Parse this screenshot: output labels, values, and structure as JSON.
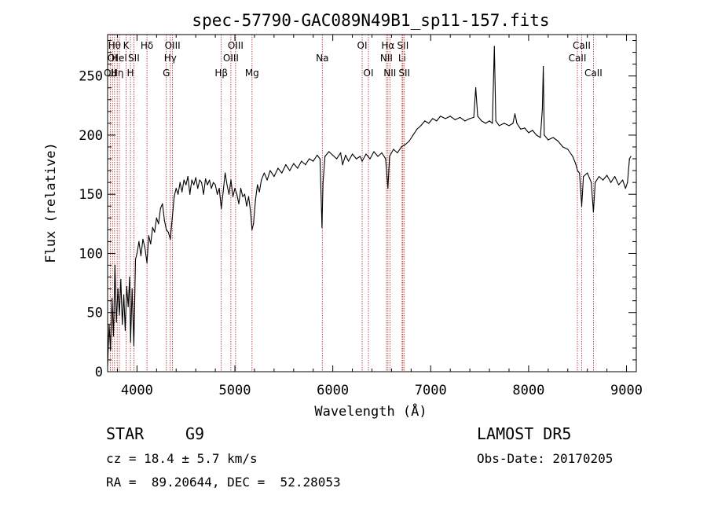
{
  "chart_data": {
    "type": "line",
    "title": "spec-57790-GAC089N49B1_sp11-157.fits",
    "xlabel": "Wavelength (Å)",
    "ylabel": "Flux (relative)",
    "xlim": [
      3700,
      9100
    ],
    "ylim": [
      0,
      285
    ],
    "xticks": [
      4000,
      5000,
      6000,
      7000,
      8000,
      9000
    ],
    "yticks": [
      0,
      50,
      100,
      150,
      200,
      250
    ],
    "grid": false,
    "line_color": "#000000",
    "marker_color": "#b22222",
    "series": [
      {
        "values": [
          {
            "x": 3700,
            "y": 5
          },
          {
            "x": 3715,
            "y": 40
          },
          {
            "x": 3730,
            "y": 18
          },
          {
            "x": 3745,
            "y": 62
          },
          {
            "x": 3760,
            "y": 30
          },
          {
            "x": 3775,
            "y": 90
          },
          {
            "x": 3790,
            "y": 42
          },
          {
            "x": 3805,
            "y": 70
          },
          {
            "x": 3820,
            "y": 48
          },
          {
            "x": 3835,
            "y": 78
          },
          {
            "x": 3850,
            "y": 40
          },
          {
            "x": 3865,
            "y": 65
          },
          {
            "x": 3880,
            "y": 35
          },
          {
            "x": 3895,
            "y": 72
          },
          {
            "x": 3910,
            "y": 55
          },
          {
            "x": 3925,
            "y": 80
          },
          {
            "x": 3934,
            "y": 25
          },
          {
            "x": 3950,
            "y": 70
          },
          {
            "x": 3968,
            "y": 22
          },
          {
            "x": 3985,
            "y": 95
          },
          {
            "x": 4000,
            "y": 100
          },
          {
            "x": 4020,
            "y": 110
          },
          {
            "x": 4040,
            "y": 98
          },
          {
            "x": 4060,
            "y": 112
          },
          {
            "x": 4080,
            "y": 105
          },
          {
            "x": 4102,
            "y": 92
          },
          {
            "x": 4120,
            "y": 115
          },
          {
            "x": 4140,
            "y": 108
          },
          {
            "x": 4160,
            "y": 122
          },
          {
            "x": 4180,
            "y": 118
          },
          {
            "x": 4200,
            "y": 130
          },
          {
            "x": 4220,
            "y": 125
          },
          {
            "x": 4240,
            "y": 138
          },
          {
            "x": 4260,
            "y": 142
          },
          {
            "x": 4280,
            "y": 128
          },
          {
            "x": 4300,
            "y": 120
          },
          {
            "x": 4320,
            "y": 118
          },
          {
            "x": 4340,
            "y": 112
          },
          {
            "x": 4360,
            "y": 130
          },
          {
            "x": 4380,
            "y": 148
          },
          {
            "x": 4400,
            "y": 155
          },
          {
            "x": 4420,
            "y": 150
          },
          {
            "x": 4440,
            "y": 160
          },
          {
            "x": 4460,
            "y": 152
          },
          {
            "x": 4480,
            "y": 162
          },
          {
            "x": 4500,
            "y": 158
          },
          {
            "x": 4520,
            "y": 165
          },
          {
            "x": 4540,
            "y": 150
          },
          {
            "x": 4560,
            "y": 162
          },
          {
            "x": 4580,
            "y": 158
          },
          {
            "x": 4600,
            "y": 164
          },
          {
            "x": 4620,
            "y": 155
          },
          {
            "x": 4640,
            "y": 162
          },
          {
            "x": 4660,
            "y": 160
          },
          {
            "x": 4680,
            "y": 150
          },
          {
            "x": 4700,
            "y": 163
          },
          {
            "x": 4720,
            "y": 158
          },
          {
            "x": 4740,
            "y": 162
          },
          {
            "x": 4760,
            "y": 155
          },
          {
            "x": 4780,
            "y": 160
          },
          {
            "x": 4800,
            "y": 158
          },
          {
            "x": 4820,
            "y": 150
          },
          {
            "x": 4840,
            "y": 155
          },
          {
            "x": 4861,
            "y": 138
          },
          {
            "x": 4880,
            "y": 152
          },
          {
            "x": 4900,
            "y": 168
          },
          {
            "x": 4920,
            "y": 158
          },
          {
            "x": 4940,
            "y": 150
          },
          {
            "x": 4960,
            "y": 162
          },
          {
            "x": 4980,
            "y": 148
          },
          {
            "x": 5000,
            "y": 155
          },
          {
            "x": 5020,
            "y": 150
          },
          {
            "x": 5040,
            "y": 142
          },
          {
            "x": 5060,
            "y": 155
          },
          {
            "x": 5080,
            "y": 148
          },
          {
            "x": 5100,
            "y": 150
          },
          {
            "x": 5120,
            "y": 140
          },
          {
            "x": 5140,
            "y": 148
          },
          {
            "x": 5160,
            "y": 135
          },
          {
            "x": 5175,
            "y": 120
          },
          {
            "x": 5190,
            "y": 125
          },
          {
            "x": 5210,
            "y": 145
          },
          {
            "x": 5230,
            "y": 158
          },
          {
            "x": 5250,
            "y": 152
          },
          {
            "x": 5270,
            "y": 162
          },
          {
            "x": 5300,
            "y": 168
          },
          {
            "x": 5330,
            "y": 162
          },
          {
            "x": 5360,
            "y": 170
          },
          {
            "x": 5400,
            "y": 165
          },
          {
            "x": 5440,
            "y": 172
          },
          {
            "x": 5480,
            "y": 168
          },
          {
            "x": 5520,
            "y": 175
          },
          {
            "x": 5560,
            "y": 170
          },
          {
            "x": 5600,
            "y": 176
          },
          {
            "x": 5640,
            "y": 172
          },
          {
            "x": 5680,
            "y": 178
          },
          {
            "x": 5720,
            "y": 175
          },
          {
            "x": 5760,
            "y": 180
          },
          {
            "x": 5800,
            "y": 178
          },
          {
            "x": 5840,
            "y": 183
          },
          {
            "x": 5870,
            "y": 180
          },
          {
            "x": 5890,
            "y": 122
          },
          {
            "x": 5900,
            "y": 160
          },
          {
            "x": 5920,
            "y": 182
          },
          {
            "x": 5960,
            "y": 186
          },
          {
            "x": 6000,
            "y": 183
          },
          {
            "x": 6040,
            "y": 180
          },
          {
            "x": 6080,
            "y": 185
          },
          {
            "x": 6100,
            "y": 175
          },
          {
            "x": 6130,
            "y": 183
          },
          {
            "x": 6160,
            "y": 178
          },
          {
            "x": 6200,
            "y": 184
          },
          {
            "x": 6240,
            "y": 180
          },
          {
            "x": 6280,
            "y": 182
          },
          {
            "x": 6300,
            "y": 178
          },
          {
            "x": 6340,
            "y": 184
          },
          {
            "x": 6380,
            "y": 180
          },
          {
            "x": 6420,
            "y": 186
          },
          {
            "x": 6460,
            "y": 182
          },
          {
            "x": 6500,
            "y": 185
          },
          {
            "x": 6540,
            "y": 180
          },
          {
            "x": 6563,
            "y": 155
          },
          {
            "x": 6580,
            "y": 182
          },
          {
            "x": 6620,
            "y": 188
          },
          {
            "x": 6660,
            "y": 185
          },
          {
            "x": 6700,
            "y": 190
          },
          {
            "x": 6740,
            "y": 192
          },
          {
            "x": 6780,
            "y": 195
          },
          {
            "x": 6820,
            "y": 200
          },
          {
            "x": 6860,
            "y": 205
          },
          {
            "x": 6900,
            "y": 208
          },
          {
            "x": 6940,
            "y": 212
          },
          {
            "x": 6980,
            "y": 210
          },
          {
            "x": 7020,
            "y": 214
          },
          {
            "x": 7060,
            "y": 212
          },
          {
            "x": 7100,
            "y": 216
          },
          {
            "x": 7150,
            "y": 214
          },
          {
            "x": 7200,
            "y": 216
          },
          {
            "x": 7250,
            "y": 213
          },
          {
            "x": 7300,
            "y": 215
          },
          {
            "x": 7350,
            "y": 212
          },
          {
            "x": 7400,
            "y": 214
          },
          {
            "x": 7440,
            "y": 215
          },
          {
            "x": 7460,
            "y": 240
          },
          {
            "x": 7480,
            "y": 216
          },
          {
            "x": 7520,
            "y": 212
          },
          {
            "x": 7560,
            "y": 210
          },
          {
            "x": 7600,
            "y": 212
          },
          {
            "x": 7630,
            "y": 210
          },
          {
            "x": 7650,
            "y": 275
          },
          {
            "x": 7665,
            "y": 212
          },
          {
            "x": 7700,
            "y": 208
          },
          {
            "x": 7750,
            "y": 210
          },
          {
            "x": 7800,
            "y": 208
          },
          {
            "x": 7840,
            "y": 210
          },
          {
            "x": 7860,
            "y": 218
          },
          {
            "x": 7880,
            "y": 210
          },
          {
            "x": 7920,
            "y": 205
          },
          {
            "x": 7960,
            "y": 206
          },
          {
            "x": 8000,
            "y": 202
          },
          {
            "x": 8040,
            "y": 204
          },
          {
            "x": 8080,
            "y": 200
          },
          {
            "x": 8120,
            "y": 198
          },
          {
            "x": 8140,
            "y": 222
          },
          {
            "x": 8150,
            "y": 258
          },
          {
            "x": 8160,
            "y": 200
          },
          {
            "x": 8200,
            "y": 196
          },
          {
            "x": 8250,
            "y": 198
          },
          {
            "x": 8300,
            "y": 195
          },
          {
            "x": 8350,
            "y": 190
          },
          {
            "x": 8400,
            "y": 188
          },
          {
            "x": 8450,
            "y": 182
          },
          {
            "x": 8480,
            "y": 176
          },
          {
            "x": 8500,
            "y": 170
          },
          {
            "x": 8520,
            "y": 168
          },
          {
            "x": 8542,
            "y": 140
          },
          {
            "x": 8560,
            "y": 165
          },
          {
            "x": 8600,
            "y": 168
          },
          {
            "x": 8640,
            "y": 160
          },
          {
            "x": 8662,
            "y": 135
          },
          {
            "x": 8680,
            "y": 160
          },
          {
            "x": 8720,
            "y": 165
          },
          {
            "x": 8760,
            "y": 162
          },
          {
            "x": 8800,
            "y": 166
          },
          {
            "x": 8840,
            "y": 160
          },
          {
            "x": 8880,
            "y": 165
          },
          {
            "x": 8920,
            "y": 158
          },
          {
            "x": 8960,
            "y": 162
          },
          {
            "x": 8990,
            "y": 155
          },
          {
            "x": 9010,
            "y": 160
          },
          {
            "x": 9030,
            "y": 180
          },
          {
            "x": 9045,
            "y": 182
          }
        ]
      }
    ],
    "line_markers": [
      {
        "x": 3727,
        "labels": [
          "OII"
        ],
        "row": 3
      },
      {
        "x": 3750,
        "labels": [
          "OI"
        ],
        "row": 2
      },
      {
        "x": 3771,
        "labels": [
          "Hθ"
        ],
        "row": 1
      },
      {
        "x": 3798,
        "labels": [
          "Hη"
        ],
        "row": 3
      },
      {
        "x": 3820,
        "labels": [
          "HeI"
        ],
        "row": 2
      },
      {
        "x": 3889,
        "labels": [
          "K"
        ],
        "row": 1
      },
      {
        "x": 3933,
        "labels": [
          "H"
        ],
        "row": 3
      },
      {
        "x": 3968,
        "labels": [
          "SII"
        ],
        "row": 2
      },
      {
        "x": 4102,
        "labels": [
          "Hδ"
        ],
        "row": 1
      },
      {
        "x": 4300,
        "labels": [
          "G"
        ],
        "row": 3
      },
      {
        "x": 4340,
        "labels": [
          "Hγ"
        ],
        "row": 2
      },
      {
        "x": 4363,
        "labels": [
          "OIII"
        ],
        "row": 1
      },
      {
        "x": 4861,
        "labels": [
          "Hβ"
        ],
        "row": 3
      },
      {
        "x": 4959,
        "labels": [
          "OIII"
        ],
        "row": 2
      },
      {
        "x": 5007,
        "labels": [
          "OIII"
        ],
        "row": 1
      },
      {
        "x": 5175,
        "labels": [
          "Mg"
        ],
        "row": 3
      },
      {
        "x": 5893,
        "labels": [
          "Na"
        ],
        "row": 2
      },
      {
        "x": 6300,
        "labels": [
          "OI"
        ],
        "row": 1
      },
      {
        "x": 6364,
        "labels": [
          "OI"
        ],
        "row": 3
      },
      {
        "x": 6548,
        "labels": [
          "NII"
        ],
        "row": 2
      },
      {
        "x": 6563,
        "labels": [
          "Hα"
        ],
        "row": 1
      },
      {
        "x": 6583,
        "labels": [
          "NII"
        ],
        "row": 3
      },
      {
        "x": 6708,
        "labels": [
          "Li"
        ],
        "row": 2
      },
      {
        "x": 6716,
        "labels": [
          "SII"
        ],
        "row": 1
      },
      {
        "x": 6731,
        "labels": [
          "SII"
        ],
        "row": 3
      },
      {
        "x": 8498,
        "labels": [
          "CaII"
        ],
        "row": 2
      },
      {
        "x": 8542,
        "labels": [
          "CaII"
        ],
        "row": 1
      },
      {
        "x": 8662,
        "labels": [
          "CaII"
        ],
        "row": 3
      }
    ]
  },
  "info": {
    "object_class": "STAR",
    "subclass": "G9",
    "survey": "LAMOST DR5",
    "cz": "cz = 18.4 ± 5.7 km/s",
    "obs_date": "Obs-Date: 20170205",
    "coords": "RA =  89.20644, DEC =  52.28053"
  }
}
